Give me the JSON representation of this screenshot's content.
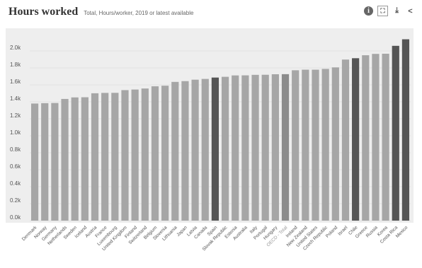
{
  "header": {
    "title": "Hours worked",
    "subtitle": "Total, Hours/worker, 2019 or latest available"
  },
  "toolbar": {
    "info_icon": "info-icon",
    "expand_icon": "expand-icon",
    "download_icon": "download-icon",
    "share_icon": "share-icon"
  },
  "colors": {
    "background": "#eeeeee",
    "bar": "#a6a6a6",
    "bar_highlight": "#555555",
    "oecd_bar": "#8c8c8c",
    "tick_label": "#555555"
  },
  "chart_data": {
    "type": "bar",
    "title": "Hours worked",
    "subtitle": "Total, Hours/worker, 2019 or latest available",
    "xlabel": "",
    "ylabel": "",
    "ylim": [
      0,
      2200
    ],
    "y_ticks": [
      0,
      200,
      400,
      600,
      800,
      1000,
      1200,
      1400,
      1600,
      1800,
      2000
    ],
    "y_tick_labels": [
      "0.0k",
      "0.2k",
      "0.4k",
      "0.6k",
      "0.8k",
      "1.0k",
      "1.2k",
      "1.4k",
      "1.6k",
      "1.8k",
      "2.0k"
    ],
    "grid": true,
    "categories": [
      "Denmark",
      "Norway",
      "Germany",
      "Netherlands",
      "Sweden",
      "Iceland",
      "Austria",
      "France",
      "Luxembourg",
      "United Kingdom",
      "Finland",
      "Switzerland",
      "Belgium",
      "Slovenia",
      "Lithuania",
      "Japan",
      "Latvia",
      "Canada",
      "Spain",
      "Slovak Republic",
      "Estonia",
      "Australia",
      "Italy",
      "Portugal",
      "Hungary",
      "OECD - Total",
      "Ireland",
      "New Zealand",
      "United States",
      "Czech Republic",
      "Poland",
      "Israel",
      "Chile",
      "Greece",
      "Russia",
      "Korea",
      "Costa Rica",
      "Mexico"
    ],
    "values": [
      1380,
      1384,
      1386,
      1434,
      1452,
      1454,
      1501,
      1505,
      1506,
      1538,
      1545,
      1557,
      1583,
      1590,
      1635,
      1644,
      1661,
      1670,
      1686,
      1695,
      1711,
      1712,
      1718,
      1719,
      1725,
      1726,
      1772,
      1779,
      1779,
      1788,
      1806,
      1898,
      1914,
      1949,
      1965,
      1967,
      2060,
      2137
    ],
    "highlighted": [
      "Spain",
      "Chile",
      "Costa Rica",
      "Mexico"
    ],
    "reference": "OECD - Total"
  }
}
